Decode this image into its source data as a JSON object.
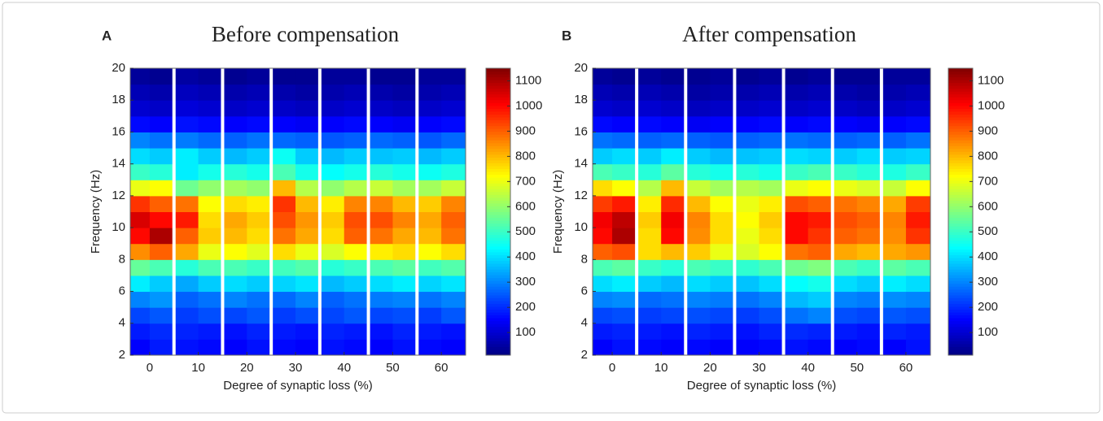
{
  "chart_data": [
    {
      "type": "heatmap",
      "panel_label": "A",
      "title": "Before compensation",
      "xlabel": "Degree of synaptic loss (%)",
      "ylabel": "Frequency (Hz)",
      "x": [
        -2.5,
        2.5,
        7.5,
        12.5,
        17.5,
        22.5,
        27.5,
        32.5,
        37.5,
        42.5,
        47.5,
        52.5,
        57.5,
        62.5
      ],
      "ybins": [
        2,
        3,
        4,
        5,
        6,
        7,
        8,
        9,
        10,
        11,
        12,
        13,
        14,
        15,
        16,
        17,
        18,
        19,
        20
      ],
      "z": [
        [
          150,
          180,
          170,
          160,
          150,
          170,
          160,
          150,
          170,
          160,
          150,
          170,
          160,
          150
        ],
        [
          180,
          200,
          190,
          180,
          170,
          190,
          180,
          170,
          190,
          180,
          170,
          190,
          180,
          170
        ],
        [
          230,
          250,
          220,
          240,
          230,
          250,
          220,
          240,
          230,
          250,
          230,
          240,
          220,
          250
        ],
        [
          300,
          320,
          260,
          280,
          300,
          280,
          270,
          300,
          260,
          280,
          290,
          300,
          280,
          300
        ],
        [
          420,
          380,
          340,
          380,
          400,
          380,
          390,
          410,
          360,
          380,
          400,
          420,
          390,
          410
        ],
        [
          550,
          520,
          480,
          520,
          520,
          500,
          510,
          530,
          480,
          500,
          520,
          540,
          510,
          530
        ],
        [
          850,
          900,
          820,
          700,
          720,
          690,
          760,
          700,
          680,
          720,
          740,
          760,
          720,
          760
        ],
        [
          1000,
          1100,
          900,
          780,
          800,
          760,
          880,
          820,
          760,
          900,
          880,
          820,
          800,
          880
        ],
        [
          1050,
          1000,
          980,
          760,
          820,
          780,
          920,
          840,
          780,
          920,
          920,
          860,
          820,
          900
        ],
        [
          950,
          900,
          880,
          720,
          760,
          740,
          950,
          800,
          740,
          860,
          860,
          800,
          780,
          860
        ],
        [
          700,
          720,
          560,
          600,
          620,
          600,
          800,
          640,
          600,
          640,
          660,
          620,
          620,
          660
        ],
        [
          500,
          480,
          420,
          460,
          480,
          460,
          520,
          460,
          440,
          460,
          480,
          460,
          450,
          470
        ],
        [
          400,
          380,
          420,
          380,
          360,
          380,
          450,
          380,
          360,
          380,
          370,
          380,
          360,
          380
        ],
        [
          300,
          280,
          290,
          270,
          260,
          280,
          270,
          260,
          250,
          260,
          270,
          260,
          250,
          270
        ],
        [
          160,
          150,
          170,
          160,
          150,
          160,
          150,
          140,
          150,
          160,
          150,
          140,
          150,
          160
        ],
        [
          100,
          90,
          110,
          100,
          90,
          100,
          90,
          80,
          90,
          100,
          90,
          80,
          90,
          100
        ],
        [
          70,
          60,
          80,
          70,
          60,
          70,
          60,
          50,
          60,
          70,
          60,
          50,
          60,
          70
        ],
        [
          40,
          30,
          50,
          40,
          30,
          40,
          30,
          30,
          40,
          40,
          30,
          30,
          40,
          40
        ]
      ],
      "xlim": [
        -4,
        65
      ],
      "ylim": [
        2,
        20
      ],
      "xticks": [
        0,
        10,
        20,
        30,
        40,
        50,
        60
      ],
      "yticks": [
        2,
        4,
        6,
        8,
        10,
        12,
        14,
        16,
        18,
        20
      ],
      "zlim": [
        10,
        1150
      ],
      "zticks": [
        100,
        200,
        300,
        400,
        500,
        600,
        700,
        800,
        900,
        1000,
        1100
      ],
      "colormap": "jet"
    },
    {
      "type": "heatmap",
      "panel_label": "B",
      "title": "After compensation",
      "xlabel": "Degree of synaptic loss (%)",
      "ylabel": "Frequency (Hz)",
      "x": [
        -2.5,
        2.5,
        7.5,
        12.5,
        17.5,
        22.5,
        27.5,
        32.5,
        37.5,
        42.5,
        47.5,
        52.5,
        57.5,
        62.5
      ],
      "ybins": [
        2,
        3,
        4,
        5,
        6,
        7,
        8,
        9,
        10,
        11,
        12,
        13,
        14,
        15,
        16,
        17,
        18,
        19,
        20
      ],
      "z": [
        [
          150,
          170,
          160,
          150,
          160,
          150,
          150,
          160,
          170,
          160,
          150,
          160,
          150,
          170
        ],
        [
          180,
          190,
          180,
          170,
          190,
          180,
          170,
          190,
          200,
          190,
          180,
          170,
          190,
          180
        ],
        [
          230,
          240,
          220,
          230,
          240,
          230,
          220,
          240,
          280,
          300,
          240,
          230,
          250,
          240
        ],
        [
          300,
          310,
          270,
          280,
          300,
          290,
          280,
          300,
          360,
          380,
          300,
          290,
          310,
          300
        ],
        [
          400,
          420,
          380,
          360,
          400,
          380,
          370,
          400,
          440,
          460,
          400,
          380,
          420,
          400
        ],
        [
          520,
          540,
          500,
          480,
          520,
          500,
          490,
          520,
          560,
          580,
          520,
          500,
          540,
          520
        ],
        [
          900,
          920,
          760,
          800,
          780,
          700,
          680,
          720,
          880,
          900,
          820,
          800,
          820,
          840
        ],
        [
          1000,
          1100,
          760,
          1000,
          850,
          760,
          700,
          760,
          1000,
          950,
          900,
          880,
          850,
          950
        ],
        [
          1020,
          1080,
          780,
          1020,
          860,
          760,
          720,
          780,
          1000,
          980,
          920,
          900,
          860,
          980
        ],
        [
          940,
          980,
          740,
          960,
          800,
          720,
          700,
          740,
          920,
          900,
          880,
          860,
          820,
          940
        ],
        [
          760,
          720,
          640,
          800,
          660,
          620,
          640,
          620,
          700,
          720,
          700,
          680,
          660,
          720
        ],
        [
          520,
          500,
          480,
          540,
          480,
          460,
          480,
          460,
          500,
          520,
          500,
          480,
          470,
          500
        ],
        [
          380,
          400,
          380,
          420,
          380,
          360,
          370,
          380,
          400,
          390,
          380,
          400,
          380,
          390
        ],
        [
          280,
          270,
          260,
          270,
          260,
          250,
          260,
          270,
          280,
          270,
          260,
          270,
          260,
          280
        ],
        [
          160,
          150,
          160,
          150,
          140,
          150,
          150,
          160,
          150,
          160,
          150,
          140,
          150,
          160
        ],
        [
          100,
          90,
          100,
          90,
          80,
          90,
          90,
          100,
          90,
          100,
          90,
          80,
          90,
          100
        ],
        [
          70,
          60,
          70,
          60,
          50,
          60,
          60,
          70,
          60,
          70,
          60,
          50,
          60,
          70
        ],
        [
          40,
          30,
          40,
          30,
          30,
          40,
          30,
          40,
          30,
          40,
          30,
          30,
          40,
          40
        ]
      ],
      "xlim": [
        -4,
        65
      ],
      "ylim": [
        2,
        20
      ],
      "xticks": [
        0,
        10,
        20,
        30,
        40,
        50,
        60
      ],
      "yticks": [
        2,
        4,
        6,
        8,
        10,
        12,
        14,
        16,
        18,
        20
      ],
      "zlim": [
        10,
        1150
      ],
      "zticks": [
        100,
        200,
        300,
        400,
        500,
        600,
        700,
        800,
        900,
        1000,
        1100
      ],
      "colormap": "jet"
    }
  ]
}
